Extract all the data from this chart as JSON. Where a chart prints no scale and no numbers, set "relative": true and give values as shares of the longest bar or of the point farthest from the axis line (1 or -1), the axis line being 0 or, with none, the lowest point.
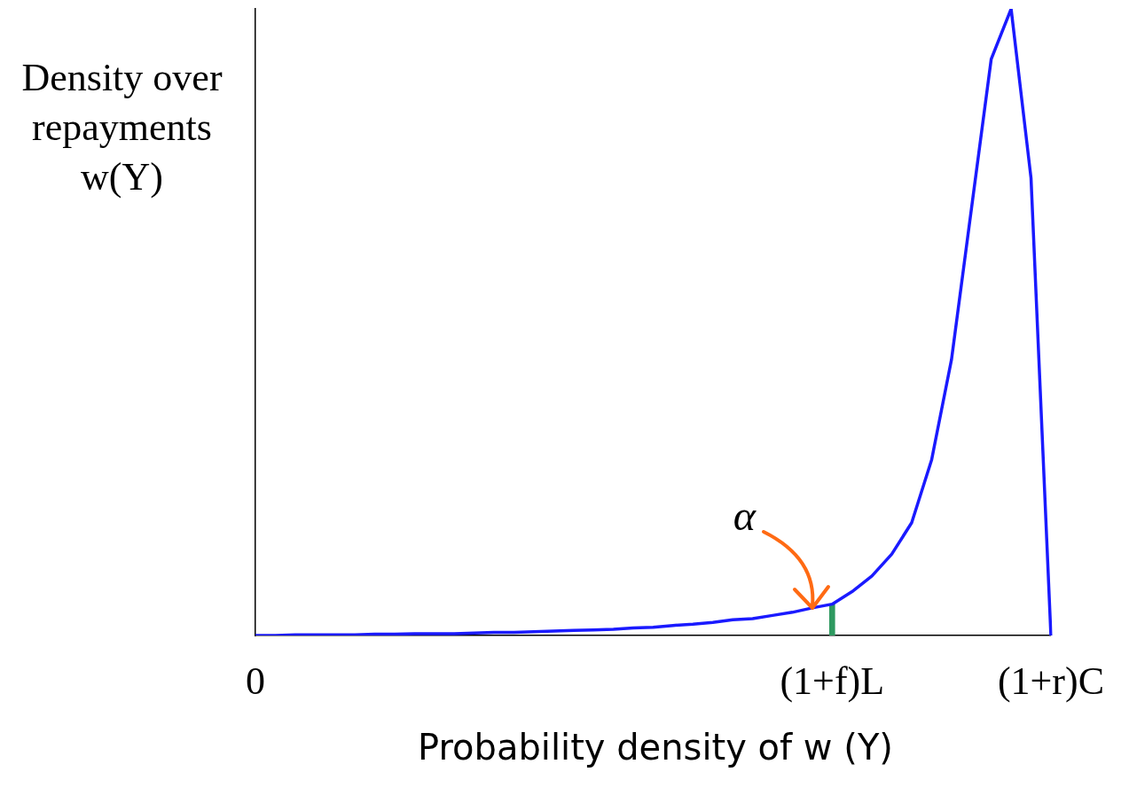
{
  "chart_data": {
    "type": "line",
    "relative": true,
    "xlabel": "Probability density of w (Y)",
    "ylabel": "Density over repayments w(Y)",
    "categories": [
      "0",
      null,
      null,
      null,
      null,
      null,
      null,
      null,
      null,
      null,
      null,
      null,
      null,
      null,
      null,
      null,
      null,
      null,
      null,
      null,
      null,
      null,
      null,
      null,
      null,
      null,
      null,
      null,
      null,
      "(1+f)L",
      null,
      null,
      null,
      null,
      null,
      null,
      null,
      null,
      null,
      null,
      "(1+r)C"
    ],
    "series": [
      {
        "color": "#1a1aff",
        "values": [
          0,
          0,
          0.001,
          0.001,
          0.001,
          0.001,
          0.002,
          0.002,
          0.003,
          0.003,
          0.003,
          0.004,
          0.005,
          0.005,
          0.006,
          0.007,
          0.008,
          0.009,
          0.01,
          0.012,
          0.013,
          0.016,
          0.018,
          0.021,
          0.025,
          0.027,
          0.032,
          0.037,
          0.044,
          0.05,
          0.07,
          0.095,
          0.13,
          0.18,
          0.28,
          0.44,
          0.68,
          0.92,
          1,
          0.73,
          0
        ]
      },
      {
        "type": "bar",
        "color": "#2e9960",
        "values": [
          null,
          null,
          null,
          null,
          null,
          null,
          null,
          null,
          null,
          null,
          null,
          null,
          null,
          null,
          null,
          null,
          null,
          null,
          null,
          null,
          null,
          null,
          null,
          null,
          null,
          null,
          null,
          null,
          null,
          0.05,
          null,
          null,
          null,
          null,
          null,
          null,
          null,
          null,
          null,
          null,
          null
        ]
      }
    ],
    "annotations": [
      "α"
    ],
    "grid": false,
    "legend": false,
    "marker": "none",
    "line_style": "solid"
  }
}
